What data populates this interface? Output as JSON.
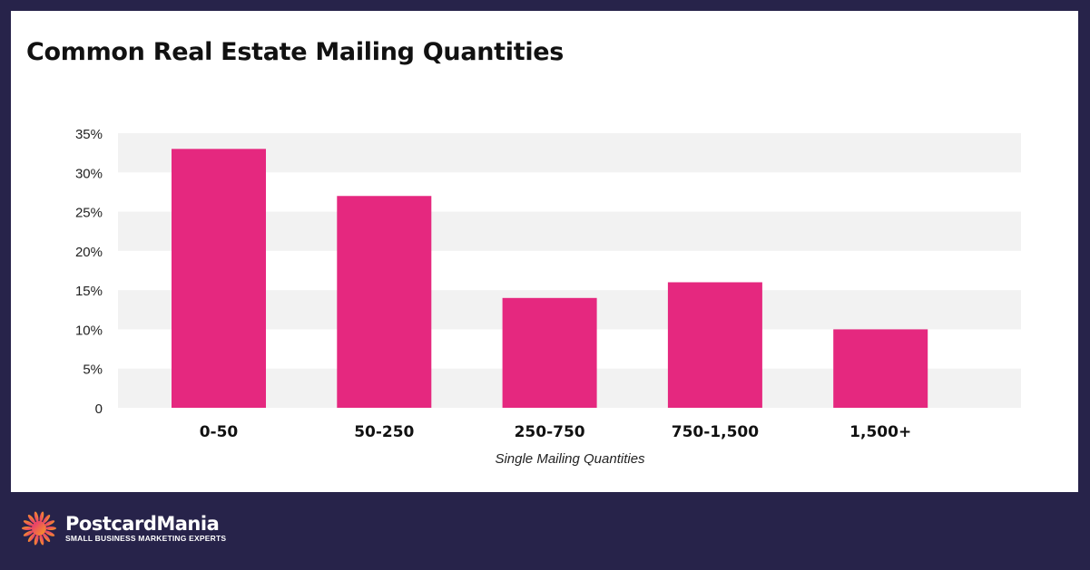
{
  "chart_data": {
    "type": "bar",
    "title": "Common Real Estate Mailing Quantities",
    "xlabel": "Single Mailing Quantities",
    "ylabel": "",
    "categories": [
      "0-50",
      "50-250",
      "250-750",
      "750-1,500",
      "1,500+"
    ],
    "values": [
      33,
      27,
      14,
      16,
      10
    ],
    "ylim": [
      0,
      35
    ],
    "yticks": [
      0,
      5,
      10,
      15,
      20,
      25,
      30,
      35
    ],
    "ytick_labels": [
      "0",
      "5%",
      "10%",
      "15%",
      "20%",
      "25%",
      "30%",
      "35%"
    ],
    "grid": "alternating horizontal bands",
    "bar_color": "#e5287f",
    "band_color": "#f2f2f2"
  },
  "footer": {
    "brand": "PostcardMania",
    "tagline": "SMALL BUSINESS MARKETING EXPERTS"
  }
}
